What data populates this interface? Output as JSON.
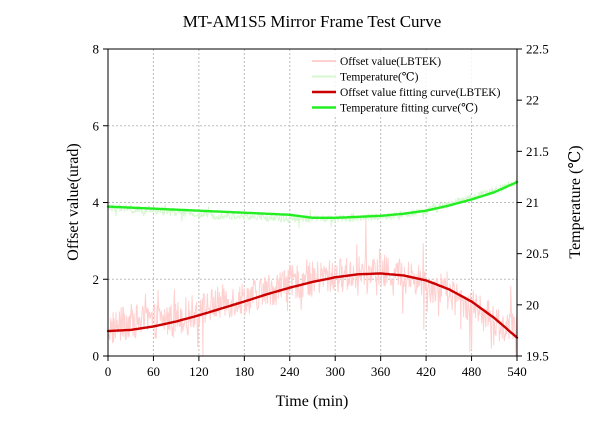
{
  "chart_data": {
    "type": "line",
    "title": "MT-AM1S5 Mirror Frame Test Curve",
    "xlabel": "Time (min)",
    "ylabel_left": "Offset value(urad)",
    "ylabel_right": "Temperature (℃)",
    "xlim": [
      0,
      540
    ],
    "ylim_left": [
      0,
      8
    ],
    "ylim_right": [
      19.5,
      22.5
    ],
    "x_ticks": [
      0,
      60,
      120,
      180,
      240,
      300,
      360,
      420,
      480,
      540
    ],
    "y_left_ticks": [
      0,
      2,
      4,
      6,
      8
    ],
    "y_right_ticks": [
      "19.5",
      "20",
      "20.5",
      "21",
      "21.5",
      "22",
      "22.5"
    ],
    "grid": true,
    "legend_position": "top-right",
    "series": [
      {
        "name": "Offset value(LBTEK)",
        "axis": "left",
        "color": "#ffd0d0",
        "style": "raw-noisy",
        "x": [
          0,
          30,
          60,
          90,
          120,
          150,
          180,
          210,
          240,
          270,
          300,
          330,
          360,
          390,
          420,
          450,
          480,
          510,
          540
        ],
        "values": [
          0.7,
          0.9,
          0.9,
          1.0,
          1.2,
          1.4,
          1.5,
          1.7,
          1.9,
          2.0,
          2.1,
          2.15,
          2.2,
          2.1,
          1.9,
          1.6,
          1.3,
          0.9,
          0.6
        ]
      },
      {
        "name": "Temperature(℃)",
        "axis": "right",
        "color": "#d6f7d0",
        "style": "raw-noisy",
        "x": [
          0,
          30,
          60,
          90,
          120,
          150,
          180,
          210,
          240,
          270,
          300,
          330,
          360,
          390,
          420,
          450,
          480,
          510,
          540
        ],
        "values": [
          20.95,
          20.93,
          20.92,
          20.9,
          20.88,
          20.87,
          20.86,
          20.85,
          20.84,
          20.84,
          20.84,
          20.85,
          20.86,
          20.88,
          20.92,
          20.98,
          21.05,
          21.12,
          21.18
        ]
      },
      {
        "name": "Offset value fitting curve(LBTEK)",
        "axis": "left",
        "color": "#cc0000",
        "style": "fit",
        "x": [
          0,
          30,
          60,
          90,
          120,
          150,
          180,
          210,
          240,
          270,
          300,
          330,
          360,
          390,
          420,
          450,
          480,
          510,
          540
        ],
        "values": [
          0.65,
          0.68,
          0.77,
          0.9,
          1.06,
          1.24,
          1.42,
          1.61,
          1.78,
          1.93,
          2.05,
          2.13,
          2.15,
          2.1,
          1.97,
          1.74,
          1.42,
          0.99,
          0.48
        ]
      },
      {
        "name": "Temperature fitting curve(℃)",
        "axis": "right",
        "color": "#22ee22",
        "style": "fit",
        "x": [
          0,
          30,
          60,
          90,
          120,
          150,
          180,
          210,
          240,
          270,
          300,
          330,
          360,
          390,
          420,
          450,
          480,
          510,
          540
        ],
        "values": [
          20.96,
          20.95,
          20.94,
          20.93,
          20.92,
          20.91,
          20.9,
          20.89,
          20.88,
          20.85,
          20.85,
          20.86,
          20.87,
          20.89,
          20.92,
          20.97,
          21.03,
          21.1,
          21.2
        ]
      }
    ]
  }
}
